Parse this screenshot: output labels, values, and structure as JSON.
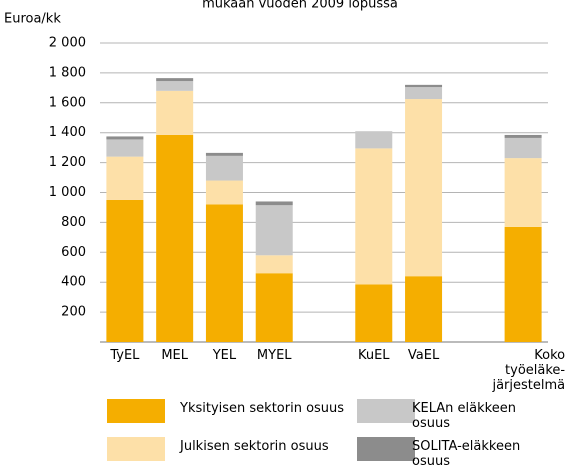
{
  "chart_data": {
    "type": "stacked_bar",
    "title": "mukaan vuoden 2009 lopussa",
    "y_label": "Euroa/kk",
    "categories": [
      "TyEL",
      "MEL",
      "YEL",
      "MYEL",
      null,
      "KuEL",
      "VaEL",
      null,
      "Koko työeläke-järjestelmä"
    ],
    "series": [
      {
        "name": "Yksityisen sektorin osuus",
        "color": "#f5ae00",
        "values": [
          950,
          1385,
          920,
          460,
          null,
          385,
          440,
          null,
          770
        ]
      },
      {
        "name": "Julkisen sektorin osuus",
        "color": "#fde0a8",
        "values": [
          290,
          295,
          160,
          120,
          null,
          910,
          1185,
          null,
          460
        ]
      },
      {
        "name": "KELAn eläkkeen osuus",
        "color": "#c8c8c8",
        "values": [
          115,
          65,
          165,
          335,
          null,
          115,
          80,
          null,
          135
        ]
      },
      {
        "name": "SOLITA-eläkkeen osuus",
        "color": "#8c8c8c",
        "values": [
          20,
          20,
          20,
          25,
          null,
          0,
          15,
          null,
          20
        ]
      }
    ],
    "ylim": [
      0,
      2000
    ],
    "yticks": [
      200,
      400,
      600,
      800,
      {
        "value": 1000,
        "label": "1 000"
      },
      {
        "value": 1200,
        "label": "1 200"
      },
      {
        "value": 1400,
        "label": "1 400"
      },
      {
        "value": 1600,
        "label": "1 600"
      },
      {
        "value": 1800,
        "label": "1 800"
      },
      {
        "value": 2000,
        "label": "2 000"
      }
    ],
    "grid": true
  }
}
